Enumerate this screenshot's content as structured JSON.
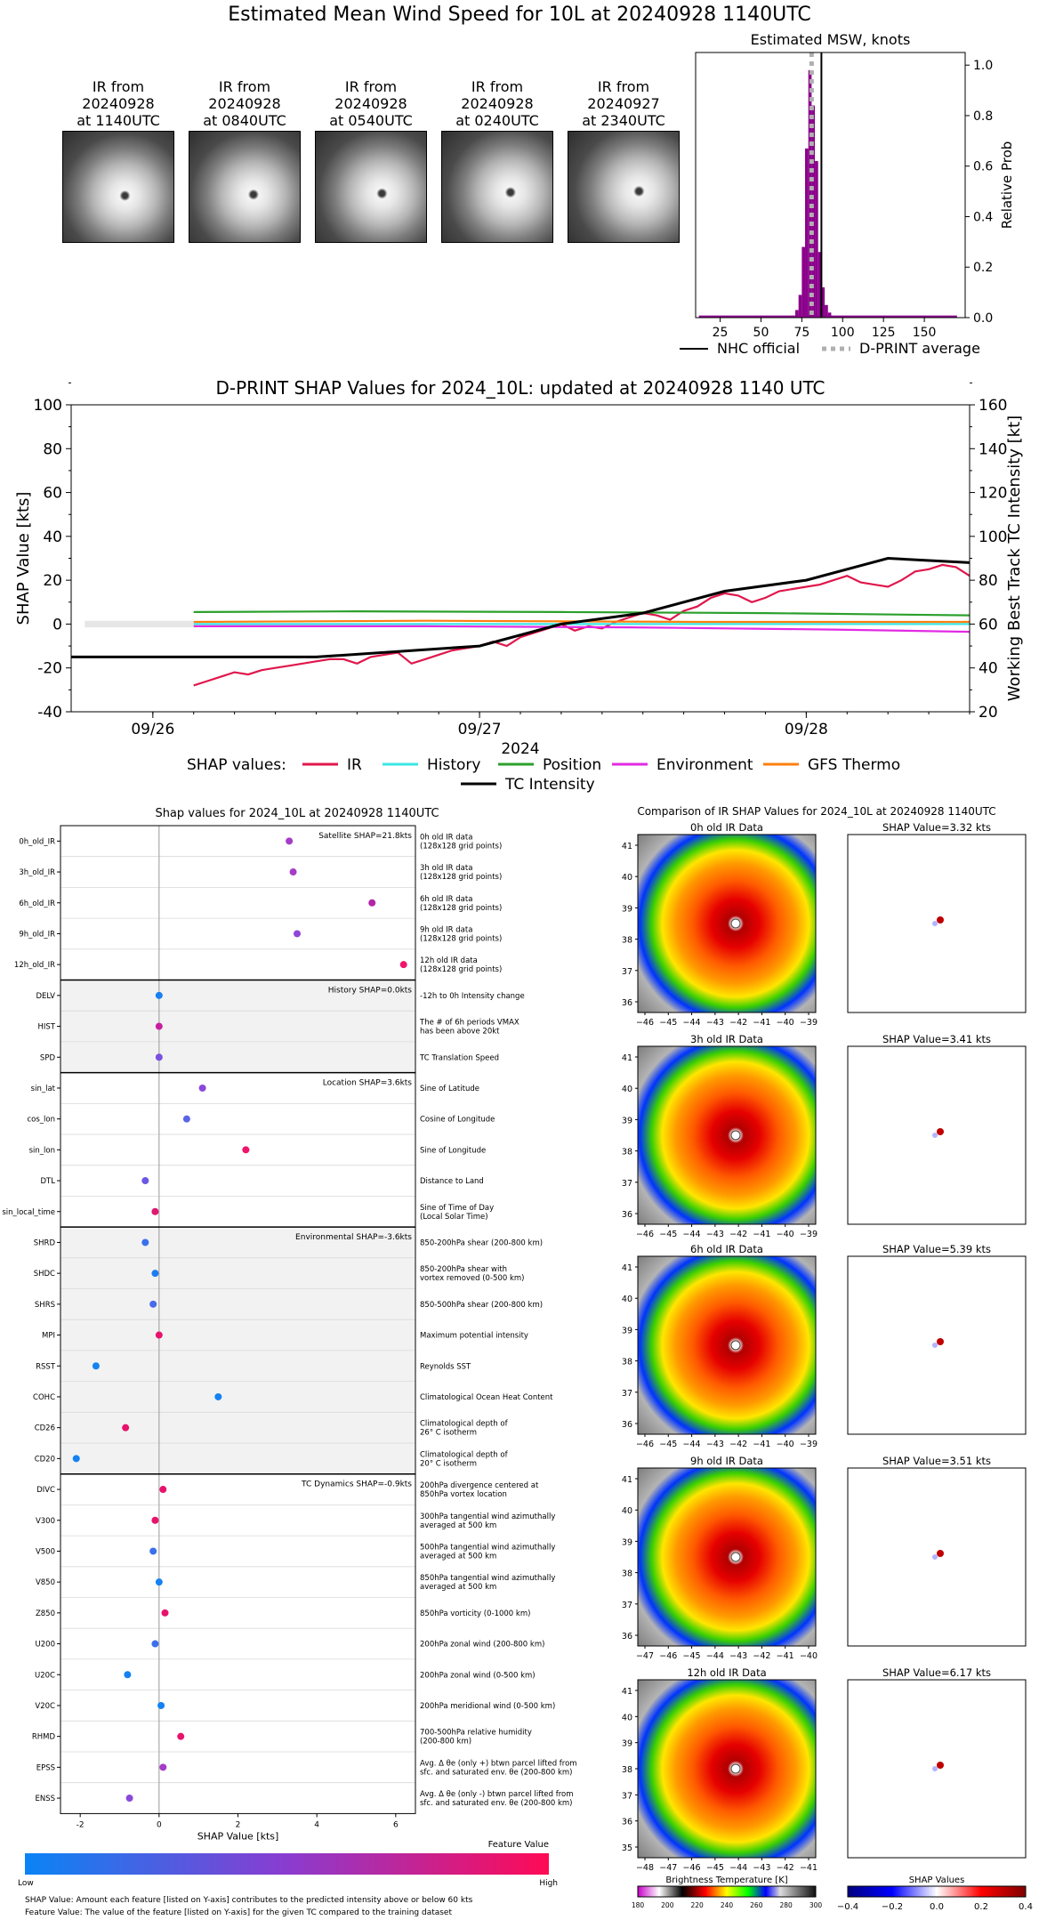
{
  "figure": {
    "title": "Estimated Mean Wind Speed for 10L at 20240928 1140UTC"
  },
  "ir_panels": [
    {
      "label_1": "IR from",
      "label_2": "20240928",
      "label_3": "at 1140UTC"
    },
    {
      "label_1": "IR from",
      "label_2": "20240928",
      "label_3": "at 0840UTC"
    },
    {
      "label_1": "IR from",
      "label_2": "20240928",
      "label_3": "at 0540UTC"
    },
    {
      "label_1": "IR from",
      "label_2": "20240928",
      "label_3": "at 0240UTC"
    },
    {
      "label_1": "IR from",
      "label_2": "20240927",
      "label_3": "at 2340UTC"
    }
  ],
  "colors": {
    "purple": "#8b008b",
    "ir": "#e0174c",
    "history": "#3be6e6",
    "position": "#2ca02c",
    "environment": "#e22be2",
    "gfs": "#ff7f0e",
    "intensity": "#000000",
    "low": "#0a84f5",
    "high": "#ff0a55"
  },
  "chart_data": [
    {
      "type": "bar",
      "title": "Estimated MSW, knots",
      "ylabel": "Relative Prob",
      "xlim": [
        10,
        175
      ],
      "ylim": [
        0,
        1.05
      ],
      "xticks": [
        25,
        50,
        75,
        100,
        125,
        150
      ],
      "yticks": [
        0.0,
        0.2,
        0.4,
        0.6,
        0.8,
        1.0
      ],
      "x": [
        72,
        74,
        76,
        78,
        80,
        82,
        84,
        86,
        88,
        90,
        92
      ],
      "values": [
        0.03,
        0.09,
        0.28,
        0.67,
        0.98,
        0.84,
        0.62,
        0.26,
        0.12,
        0.05,
        0.02
      ],
      "nhc_official": 87,
      "dprint_average": 81,
      "legend": [
        {
          "name": "NHC official",
          "style": "solid"
        },
        {
          "name": "D-PRINT average",
          "style": "dotted"
        }
      ]
    },
    {
      "type": "line",
      "title": "D-PRINT SHAP Values for 2024_10L: updated at 20240928 1140 UTC",
      "xlabel": "2024",
      "ylabel": "SHAP Value [kts]",
      "ylabel_right": "Working Best Track TC Intensity [kt]",
      "ylim": [
        -40,
        100
      ],
      "ylim_right": [
        20,
        160
      ],
      "yticks": [
        -40,
        -20,
        0,
        20,
        40,
        60,
        80,
        100
      ],
      "yticks_right": [
        20,
        40,
        60,
        80,
        100,
        120,
        140,
        160
      ],
      "xlim_hours": [
        -6,
        60
      ],
      "xticks": [
        {
          "label": "09/26",
          "hour": 0
        },
        {
          "label": "09/27",
          "hour": 24
        },
        {
          "label": "09/28",
          "hour": 48
        }
      ],
      "legend_title": "SHAP values:",
      "series": [
        {
          "name": "IR",
          "x": [
            3,
            4,
            5,
            6,
            7,
            8,
            9,
            10,
            11,
            12,
            13,
            14,
            15,
            16,
            17,
            18,
            19,
            20,
            21,
            22,
            23,
            24,
            25,
            26,
            27,
            28,
            29,
            30,
            31,
            32,
            33,
            34,
            35,
            36,
            37,
            38,
            39,
            40,
            41,
            42,
            43,
            44,
            45,
            46,
            47,
            48,
            49,
            50,
            51,
            52,
            53,
            54,
            55,
            56,
            57,
            58,
            59,
            60
          ],
          "y": [
            -28,
            -26,
            -24,
            -22,
            -23,
            -21,
            -20,
            -19,
            -18,
            -17,
            -16,
            -16,
            -18,
            -15,
            -14,
            -13,
            -18,
            -16,
            -14,
            -12,
            -11,
            -10,
            -8,
            -10,
            -6,
            -4,
            -2,
            0,
            -3,
            -1,
            -2,
            1,
            3,
            5,
            4,
            2,
            6,
            8,
            12,
            14,
            13,
            10,
            12,
            15,
            16,
            17,
            18,
            20,
            22,
            19,
            18,
            17,
            20,
            24,
            25,
            27,
            26,
            22
          ]
        },
        {
          "name": "History",
          "x": [
            3,
            60
          ],
          "y": [
            0,
            0
          ]
        },
        {
          "name": "Position",
          "x": [
            3,
            15,
            30,
            45,
            60
          ],
          "y": [
            5.5,
            5.8,
            5.5,
            5,
            4
          ]
        },
        {
          "name": "Environment",
          "x": [
            3,
            20,
            35,
            50,
            60
          ],
          "y": [
            -1,
            -1,
            -1.5,
            -2.5,
            -3.5
          ]
        },
        {
          "name": "GFS Thermo",
          "x": [
            3,
            20,
            40,
            60
          ],
          "y": [
            1,
            1.5,
            1,
            1
          ]
        },
        {
          "name": "TC Intensity",
          "axis": "right",
          "x": [
            -6,
            12,
            24,
            30,
            36,
            42,
            48,
            54,
            60
          ],
          "y": [
            45,
            45,
            50,
            60,
            65,
            75,
            80,
            90,
            88
          ]
        }
      ]
    },
    {
      "type": "scatter",
      "title": "Shap values for 2024_10L at 20240928 1140UTC",
      "xlabel": "SHAP Value [kts]",
      "xlim": [
        -2.5,
        6.5
      ],
      "xticks": [
        -2,
        0,
        2,
        4,
        6
      ],
      "groups": [
        {
          "title": "Satellite SHAP=21.8kts",
          "shaded": false,
          "features": [
            {
              "name": "0h_old_IR",
              "desc1": "0h old IR data",
              "desc2": "(128x128 grid points)",
              "value": 3.3,
              "color": "#a63cc8"
            },
            {
              "name": "3h_old_IR",
              "desc1": "3h old IR data",
              "desc2": "(128x128 grid points)",
              "value": 3.4,
              "color": "#a63cc8"
            },
            {
              "name": "6h_old_IR",
              "desc1": "6h old IR data",
              "desc2": "(128x128 grid points)",
              "value": 5.4,
              "color": "#b325a8"
            },
            {
              "name": "9h_old_IR",
              "desc1": "9h old IR data",
              "desc2": "(128x128 grid points)",
              "value": 3.5,
              "color": "#8f46d8"
            },
            {
              "name": "12h_old_IR",
              "desc1": "12h old IR data",
              "desc2": "(128x128 grid points)",
              "value": 6.2,
              "color": "#f0146a"
            }
          ]
        },
        {
          "title": "History SHAP=0.0kts",
          "shaded": true,
          "features": [
            {
              "name": "DELV",
              "desc1": "-12h to 0h Intensity change",
              "desc2": "",
              "value": 0.0,
              "color": "#1780f0"
            },
            {
              "name": "HIST",
              "desc1": "The # of 6h periods VMAX",
              "desc2": "has been above 20kt",
              "value": 0.0,
              "color": "#c81ea0"
            },
            {
              "name": "SPD",
              "desc1": "TC Translation Speed",
              "desc2": "",
              "value": 0.0,
              "color": "#7a50e0"
            }
          ]
        },
        {
          "title": "Location SHAP=3.6kts",
          "shaded": false,
          "features": [
            {
              "name": "sin_lat",
              "desc1": "Sine of Latitude",
              "desc2": "",
              "value": 1.1,
              "color": "#8a48dc"
            },
            {
              "name": "cos_lon",
              "desc1": "Cosine of Longitude",
              "desc2": "",
              "value": 0.7,
              "color": "#5a64e8"
            },
            {
              "name": "sin_lon",
              "desc1": "Sine of Longitude",
              "desc2": "",
              "value": 2.2,
              "color": "#f0146a"
            },
            {
              "name": "DTL",
              "desc1": "Distance to Land",
              "desc2": "",
              "value": -0.35,
              "color": "#6a58e4"
            },
            {
              "name": "sin_local_time",
              "desc1": "Sine of Time of Day",
              "desc2": "(Local Solar Time)",
              "value": -0.1,
              "color": "#e01872"
            }
          ]
        },
        {
          "title": "Environmental SHAP=-3.6kts",
          "shaded": true,
          "features": [
            {
              "name": "SHRD",
              "desc1": "850-200hPa shear (200-800 km)",
              "desc2": "",
              "value": -0.35,
              "color": "#3a70ec"
            },
            {
              "name": "SHDC",
              "desc1": "850-200hPa shear with",
              "desc2": "vortex removed (0-500 km)",
              "value": -0.1,
              "color": "#1c7cf0"
            },
            {
              "name": "SHRS",
              "desc1": "850-500hPa shear (200-800 km)",
              "desc2": "",
              "value": -0.15,
              "color": "#4a6ae8"
            },
            {
              "name": "MPI",
              "desc1": "Maximum potential intensity",
              "desc2": "",
              "value": 0.0,
              "color": "#e8126c"
            },
            {
              "name": "RSST",
              "desc1": "Reynolds SST",
              "desc2": "",
              "value": -1.6,
              "color": "#1482f2"
            },
            {
              "name": "COHC",
              "desc1": "Climatological Ocean Heat Content",
              "desc2": "",
              "value": 1.5,
              "color": "#1482f2"
            },
            {
              "name": "CD26",
              "desc1": "Climatological depth of",
              "desc2": "26° C isotherm",
              "value": -0.85,
              "color": "#e8126c"
            },
            {
              "name": "CD20",
              "desc1": "Climatological depth of",
              "desc2": "20° C isotherm",
              "value": -2.1,
              "color": "#1482f2"
            }
          ]
        },
        {
          "title": "TC Dynamics SHAP=-0.9kts",
          "shaded": false,
          "features": [
            {
              "name": "DIVC",
              "desc1": "200hPa divergence centered at",
              "desc2": "850hPa vortex location",
              "value": 0.1,
              "color": "#e8126c"
            },
            {
              "name": "V300",
              "desc1": "300hPa tangential wind azimuthally",
              "desc2": "averaged at 500 km",
              "value": -0.1,
              "color": "#e8126c"
            },
            {
              "name": "V500",
              "desc1": "500hPa tangential wind azimuthally",
              "desc2": "averaged at 500 km",
              "value": -0.15,
              "color": "#3a70ec"
            },
            {
              "name": "V850",
              "desc1": "850hPa tangential wind azimuthally",
              "desc2": "averaged at 500 km",
              "value": 0.0,
              "color": "#1482f2"
            },
            {
              "name": "Z850",
              "desc1": "850hPa vorticity (0-1000 km)",
              "desc2": "",
              "value": 0.15,
              "color": "#e8126c"
            },
            {
              "name": "U200",
              "desc1": "200hPa zonal wind (200-800 km)",
              "desc2": "",
              "value": -0.1,
              "color": "#3a70ec"
            },
            {
              "name": "U20C",
              "desc1": "200hPa zonal wind (0-500 km)",
              "desc2": "",
              "value": -0.8,
              "color": "#1482f2"
            },
            {
              "name": "V20C",
              "desc1": "200hPa meridional wind (0-500 km)",
              "desc2": "",
              "value": 0.05,
              "color": "#1482f2"
            },
            {
              "name": "RHMD",
              "desc1": "700-500hPa relative humidity",
              "desc2": "(200-800 km)",
              "value": 0.55,
              "color": "#e8126c"
            },
            {
              "name": "EPSS",
              "desc1": "Avg. Δ θe (only +) btwn parcel lifted from",
              "desc2": "sfc. and saturated env. θe (200-800 km)",
              "value": 0.1,
              "color": "#a63cc8"
            },
            {
              "name": "ENSS",
              "desc1": "Avg. Δ θe (only -) btwn parcel lifted from",
              "desc2": "sfc. and saturated env. θe (200-800 km)",
              "value": -0.75,
              "color": "#8a48dc"
            }
          ]
        }
      ],
      "colorbar": {
        "title": "Feature Value",
        "low": "Low",
        "high": "High"
      },
      "notes": [
        "SHAP Value: Amount each feature [listed on Y-axis] contributes to the predicted intensity above or below 60 kts",
        "Feature Value: The value of the feature [listed on Y-axis] for the given TC compared to the training dataset"
      ]
    },
    {
      "type": "heatmap",
      "title": "Comparison of IR SHAP Values for 2024_10L at 20240928 1140UTC",
      "rows": [
        {
          "ir_title": "0h old IR Data",
          "shap_title": "SHAP Value=3.32 kts",
          "xticks": [
            -46,
            -45,
            -44,
            -43,
            -42,
            -41,
            -40,
            -39
          ],
          "yticks": [
            36,
            37,
            38,
            39,
            40,
            41
          ]
        },
        {
          "ir_title": "3h old IR Data",
          "shap_title": "SHAP Value=3.41 kts",
          "xticks": [
            -46,
            -45,
            -44,
            -43,
            -42,
            -41,
            -40,
            -39
          ],
          "yticks": [
            36,
            37,
            38,
            39,
            40,
            41
          ]
        },
        {
          "ir_title": "6h old IR Data",
          "shap_title": "SHAP Value=5.39 kts",
          "xticks": [
            -46,
            -45,
            -44,
            -43,
            -42,
            -41,
            -40,
            -39
          ],
          "yticks": [
            36,
            37,
            38,
            39,
            40,
            41
          ]
        },
        {
          "ir_title": "9h old IR Data",
          "shap_title": "SHAP Value=3.51 kts",
          "xticks": [
            -47,
            -46,
            -45,
            -44,
            -43,
            -42,
            -41,
            -40
          ],
          "yticks": [
            36,
            37,
            38,
            39,
            40,
            41
          ]
        },
        {
          "ir_title": "12h old IR Data",
          "shap_title": "SHAP Value=6.17 kts",
          "xticks": [
            -48,
            -47,
            -46,
            -45,
            -44,
            -43,
            -42,
            -41
          ],
          "yticks": [
            35,
            36,
            37,
            38,
            39,
            40,
            41
          ]
        }
      ],
      "bt_colorbar": {
        "title": "Brightness Temperature [K]",
        "ticks": [
          "180",
          "200",
          "220",
          "240",
          "260",
          "280",
          "300"
        ]
      },
      "shap_colorbar": {
        "title": "SHAP Values",
        "ticks": [
          "−0.4",
          "−0.2",
          "0.0",
          "0.2",
          "0.4"
        ]
      }
    }
  ]
}
